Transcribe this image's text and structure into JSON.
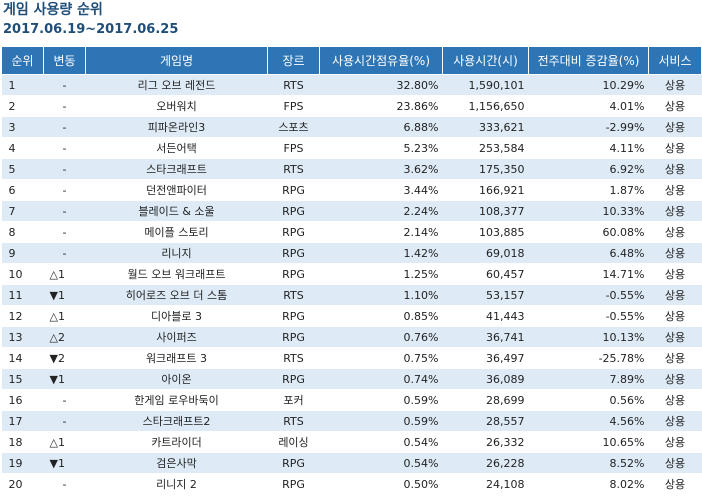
{
  "title": "게임 사용량 순위",
  "period": "2017.06.19~2017.06.25",
  "headers": [
    "순위",
    "변동",
    "게임명",
    "장르",
    "사용시간점유율(%)",
    "사용시간(시)",
    "전주대비 증감율(%)",
    "서비스"
  ],
  "rows": [
    {
      "rank": "1",
      "change": "-",
      "game": "리그 오브 레전드",
      "genre": "RTS",
      "share": "32.80%",
      "hours": "1,590,101",
      "growth": "10.29%",
      "service": "상용"
    },
    {
      "rank": "2",
      "change": "-",
      "game": "오버워치",
      "genre": "FPS",
      "share": "23.86%",
      "hours": "1,156,650",
      "growth": "4.01%",
      "service": "상용"
    },
    {
      "rank": "3",
      "change": "-",
      "game": "피파온라인3",
      "genre": "스포츠",
      "share": "6.88%",
      "hours": "333,621",
      "growth": "-2.99%",
      "service": "상용"
    },
    {
      "rank": "4",
      "change": "-",
      "game": "서든어택",
      "genre": "FPS",
      "share": "5.23%",
      "hours": "253,584",
      "growth": "4.11%",
      "service": "상용"
    },
    {
      "rank": "5",
      "change": "-",
      "game": "스타크래프트",
      "genre": "RTS",
      "share": "3.62%",
      "hours": "175,350",
      "growth": "6.92%",
      "service": "상용"
    },
    {
      "rank": "6",
      "change": "-",
      "game": "던전앤파이터",
      "genre": "RPG",
      "share": "3.44%",
      "hours": "166,921",
      "growth": "1.87%",
      "service": "상용"
    },
    {
      "rank": "7",
      "change": "-",
      "game": "블레이드 & 소울",
      "genre": "RPG",
      "share": "2.24%",
      "hours": "108,377",
      "growth": "10.33%",
      "service": "상용"
    },
    {
      "rank": "8",
      "change": "-",
      "game": "메이플 스토리",
      "genre": "RPG",
      "share": "2.14%",
      "hours": "103,885",
      "growth": "60.08%",
      "service": "상용"
    },
    {
      "rank": "9",
      "change": "-",
      "game": "리니지",
      "genre": "RPG",
      "share": "1.42%",
      "hours": "69,018",
      "growth": "6.48%",
      "service": "상용"
    },
    {
      "rank": "10",
      "change": "△1",
      "game": "월드 오브 워크래프트",
      "genre": "RPG",
      "share": "1.25%",
      "hours": "60,457",
      "growth": "14.71%",
      "service": "상용"
    },
    {
      "rank": "11",
      "change": "▼1",
      "game": "히어로즈 오브 더 스톰",
      "genre": "RTS",
      "share": "1.10%",
      "hours": "53,157",
      "growth": "-0.55%",
      "service": "상용"
    },
    {
      "rank": "12",
      "change": "△1",
      "game": "디아블로 3",
      "genre": "RPG",
      "share": "0.85%",
      "hours": "41,443",
      "growth": "-0.55%",
      "service": "상용"
    },
    {
      "rank": "13",
      "change": "△2",
      "game": "사이퍼즈",
      "genre": "RPG",
      "share": "0.76%",
      "hours": "36,741",
      "growth": "10.13%",
      "service": "상용"
    },
    {
      "rank": "14",
      "change": "▼2",
      "game": "워크래프트 3",
      "genre": "RTS",
      "share": "0.75%",
      "hours": "36,497",
      "growth": "-25.78%",
      "service": "상용"
    },
    {
      "rank": "15",
      "change": "▼1",
      "game": "아이온",
      "genre": "RPG",
      "share": "0.74%",
      "hours": "36,089",
      "growth": "7.89%",
      "service": "상용"
    },
    {
      "rank": "16",
      "change": "-",
      "game": "한게임 로우바둑이",
      "genre": "포커",
      "share": "0.59%",
      "hours": "28,699",
      "growth": "0.56%",
      "service": "상용"
    },
    {
      "rank": "17",
      "change": "-",
      "game": "스타크래프트2",
      "genre": "RTS",
      "share": "0.59%",
      "hours": "28,557",
      "growth": "4.56%",
      "service": "상용"
    },
    {
      "rank": "18",
      "change": "△1",
      "game": "카트라이더",
      "genre": "레이싱",
      "share": "0.54%",
      "hours": "26,332",
      "growth": "10.65%",
      "service": "상용"
    },
    {
      "rank": "19",
      "change": "▼1",
      "game": "검은사막",
      "genre": "RPG",
      "share": "0.54%",
      "hours": "26,228",
      "growth": "8.52%",
      "service": "상용"
    },
    {
      "rank": "20",
      "change": "-",
      "game": "리니지 2",
      "genre": "RPG",
      "share": "0.50%",
      "hours": "24,108",
      "growth": "8.02%",
      "service": "상용"
    }
  ]
}
